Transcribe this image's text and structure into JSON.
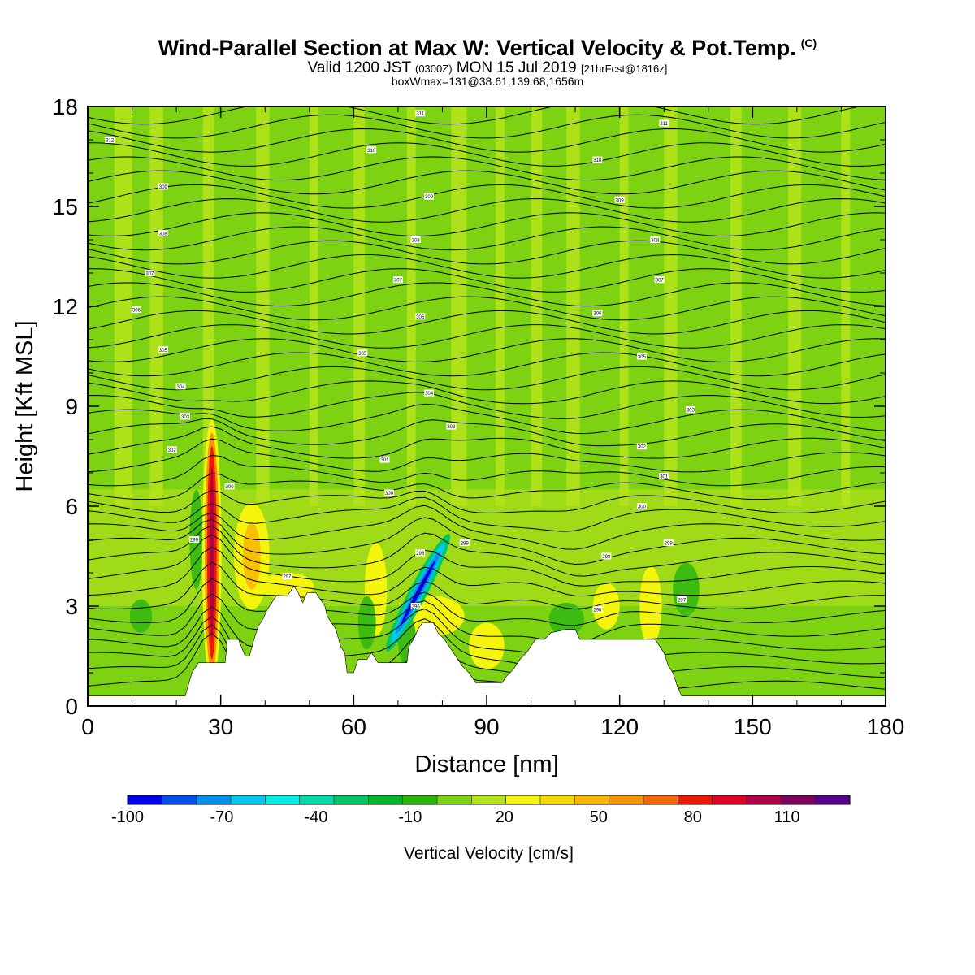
{
  "header": {
    "title": "Wind-Parallel Section at Max W: Vertical Velocity & Pot.Temp.",
    "copyright_mark": "(C)",
    "valid_prefix": "Valid 1200 JST",
    "valid_utc": "(0300Z)",
    "valid_date": "MON 15 Jul 2019",
    "forecast": "[21hrFcst@1816z]",
    "boxinfo": "boxWmax=131@38.61,139.68,1656m"
  },
  "colors": {
    "background_field": "#7dd312",
    "light_green": "#b5e31a",
    "yellow": "#f4f50a",
    "terrain": "#ffffff",
    "frame": "#000000"
  },
  "chart_data": {
    "type": "heatmap",
    "xlabel": "Distance [nm]",
    "ylabel": "Height [Kft MSL]",
    "xlim": [
      0,
      180
    ],
    "ylim": [
      0,
      18
    ],
    "xticks": [
      0,
      30,
      60,
      90,
      120,
      150,
      180
    ],
    "yticks": [
      0,
      3,
      6,
      9,
      12,
      15,
      18
    ],
    "colorbar": {
      "title": "Vertical Velocity [cm/s]",
      "min": -100,
      "max": 130,
      "labels": [
        -100,
        -70,
        -40,
        -10,
        20,
        50,
        80,
        110
      ],
      "colors": [
        "#0000f0",
        "#0050f0",
        "#0090f0",
        "#00c8f0",
        "#00f0e8",
        "#00dca8",
        "#00c864",
        "#00b828",
        "#28b800",
        "#7dd312",
        "#b5e31a",
        "#f4f50a",
        "#f8d800",
        "#f8b800",
        "#f89400",
        "#f86800",
        "#f01800",
        "#e00028",
        "#b00048",
        "#800060",
        "#58008c"
      ]
    },
    "terrain_profile": [
      [
        0,
        0.3
      ],
      [
        22,
        0.3
      ],
      [
        23.5,
        1.0
      ],
      [
        25,
        1.3
      ],
      [
        31,
        1.3
      ],
      [
        31.5,
        2.0
      ],
      [
        34,
        2.0
      ],
      [
        35.5,
        1.5
      ],
      [
        36.5,
        1.5
      ],
      [
        37.5,
        2.0
      ],
      [
        38.5,
        2.4
      ],
      [
        39.5,
        2.6
      ],
      [
        40.5,
        2.9
      ],
      [
        41.5,
        3.1
      ],
      [
        42.5,
        3.3
      ],
      [
        45,
        3.3
      ],
      [
        46.5,
        3.6
      ],
      [
        47.5,
        3.4
      ],
      [
        48.5,
        3.1
      ],
      [
        49.5,
        3.4
      ],
      [
        51.5,
        3.4
      ],
      [
        52.5,
        3.2
      ],
      [
        53.5,
        3.0
      ],
      [
        54,
        2.7
      ],
      [
        55,
        2.5
      ],
      [
        56,
        2.3
      ],
      [
        57,
        1.8
      ],
      [
        58,
        1.6
      ],
      [
        58.5,
        1.0
      ],
      [
        60,
        1.0
      ],
      [
        61,
        1.4
      ],
      [
        63,
        1.4
      ],
      [
        64,
        1.6
      ],
      [
        65.5,
        1.3
      ],
      [
        72,
        1.3
      ],
      [
        72.5,
        1.8
      ],
      [
        73.5,
        2.0
      ],
      [
        74.5,
        2.3
      ],
      [
        75.5,
        2.5
      ],
      [
        78,
        2.5
      ],
      [
        79,
        2.2
      ],
      [
        80.5,
        2.0
      ],
      [
        81.5,
        1.8
      ],
      [
        82.5,
        1.6
      ],
      [
        83.5,
        1.4
      ],
      [
        84.5,
        1.2
      ],
      [
        86,
        1.0
      ],
      [
        87.5,
        0.7
      ],
      [
        93.5,
        0.7
      ],
      [
        94.5,
        0.9
      ],
      [
        96,
        1.1
      ],
      [
        97.5,
        1.4
      ],
      [
        99,
        1.6
      ],
      [
        100,
        1.8
      ],
      [
        101,
        2.0
      ],
      [
        103,
        2.0
      ],
      [
        104.5,
        2.2
      ],
      [
        108,
        2.3
      ],
      [
        110,
        2.3
      ],
      [
        111,
        2.0
      ],
      [
        115,
        2.0
      ],
      [
        116,
        2.0
      ],
      [
        128,
        2.0
      ],
      [
        129,
        1.8
      ],
      [
        130,
        1.6
      ],
      [
        131,
        1.2
      ],
      [
        132,
        1.0
      ],
      [
        133,
        0.6
      ],
      [
        134,
        0.3
      ],
      [
        180,
        0.3
      ]
    ],
    "features": [
      {
        "type": "updraft",
        "center_x": 28,
        "max_cm_s": 131
      },
      {
        "type": "downdraft",
        "center_x": 74.5,
        "min_cm_s": -100
      }
    ],
    "isentrope_labels": [
      {
        "x": 5,
        "y": 17.0,
        "text": "312"
      },
      {
        "x": 75,
        "y": 17.8,
        "text": "311"
      },
      {
        "x": 130,
        "y": 17.5,
        "text": "311"
      },
      {
        "x": 64,
        "y": 16.7,
        "text": "310"
      },
      {
        "x": 17,
        "y": 15.6,
        "text": "309"
      },
      {
        "x": 115,
        "y": 16.4,
        "text": "310"
      },
      {
        "x": 77,
        "y": 15.3,
        "text": "309"
      },
      {
        "x": 120,
        "y": 15.2,
        "text": "309"
      },
      {
        "x": 17,
        "y": 14.2,
        "text": "308"
      },
      {
        "x": 74,
        "y": 14.0,
        "text": "308"
      },
      {
        "x": 128,
        "y": 14.0,
        "text": "308"
      },
      {
        "x": 14,
        "y": 13.0,
        "text": "307"
      },
      {
        "x": 70,
        "y": 12.8,
        "text": "307"
      },
      {
        "x": 129,
        "y": 12.8,
        "text": "307"
      },
      {
        "x": 11,
        "y": 11.9,
        "text": "306"
      },
      {
        "x": 75,
        "y": 11.7,
        "text": "306"
      },
      {
        "x": 115,
        "y": 11.8,
        "text": "306"
      },
      {
        "x": 17,
        "y": 10.7,
        "text": "305"
      },
      {
        "x": 62,
        "y": 10.6,
        "text": "305"
      },
      {
        "x": 125,
        "y": 10.5,
        "text": "305"
      },
      {
        "x": 21,
        "y": 9.6,
        "text": "304"
      },
      {
        "x": 77,
        "y": 9.4,
        "text": "304"
      },
      {
        "x": 136,
        "y": 8.9,
        "text": "303"
      },
      {
        "x": 22,
        "y": 8.7,
        "text": "303"
      },
      {
        "x": 82,
        "y": 8.4,
        "text": "303"
      },
      {
        "x": 19,
        "y": 7.7,
        "text": "302"
      },
      {
        "x": 125,
        "y": 7.8,
        "text": "302"
      },
      {
        "x": 67,
        "y": 7.4,
        "text": "301"
      },
      {
        "x": 32,
        "y": 6.6,
        "text": "300"
      },
      {
        "x": 68,
        "y": 6.4,
        "text": "300"
      },
      {
        "x": 130,
        "y": 6.9,
        "text": "301"
      },
      {
        "x": 125,
        "y": 6.0,
        "text": "300"
      },
      {
        "x": 24,
        "y": 5.0,
        "text": "299"
      },
      {
        "x": 85,
        "y": 4.9,
        "text": "299"
      },
      {
        "x": 131,
        "y": 4.9,
        "text": "299"
      },
      {
        "x": 75,
        "y": 4.6,
        "text": "298"
      },
      {
        "x": 117,
        "y": 4.5,
        "text": "298"
      },
      {
        "x": 45,
        "y": 3.9,
        "text": "297"
      },
      {
        "x": 134,
        "y": 3.2,
        "text": "297"
      },
      {
        "x": 74,
        "y": 3.0,
        "text": "296"
      },
      {
        "x": 115,
        "y": 2.9,
        "text": "296"
      }
    ]
  }
}
